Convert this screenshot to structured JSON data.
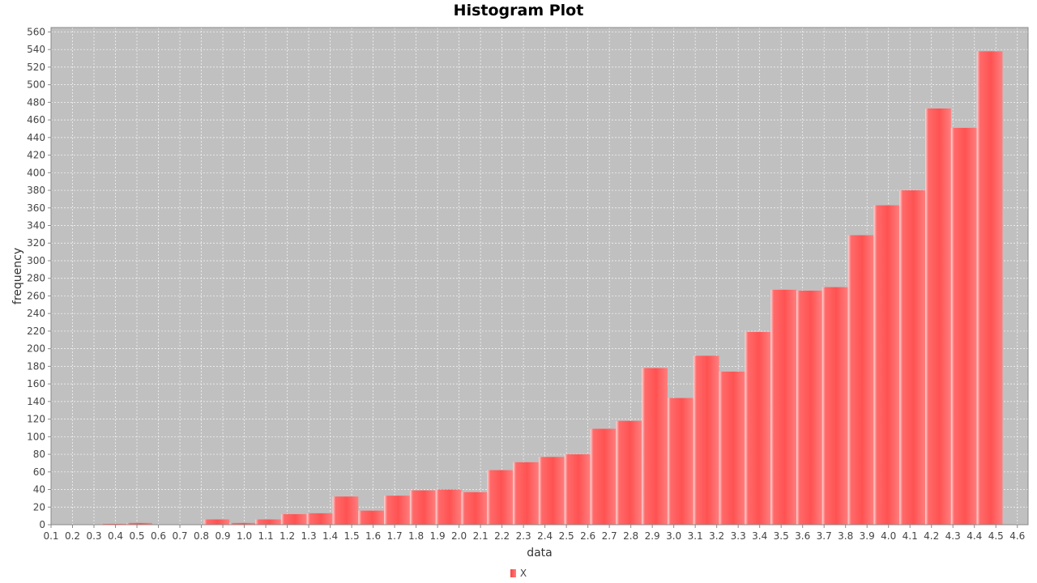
{
  "chart_data": {
    "type": "bar",
    "title": "Histogram Plot",
    "xlabel": "data",
    "ylabel": "frequency",
    "xlim": [
      0.1,
      4.65
    ],
    "ylim": [
      0,
      565
    ],
    "grid": true,
    "legend_position": "bottom-center",
    "x_ticks": [
      "0.1",
      "0.2",
      "0.3",
      "0.4",
      "0.5",
      "0.6",
      "0.7",
      "0.8",
      "0.9",
      "1.0",
      "1.1",
      "1.2",
      "1.3",
      "1.4",
      "1.5",
      "1.6",
      "1.7",
      "1.8",
      "1.9",
      "2.0",
      "2.1",
      "2.2",
      "2.3",
      "2.4",
      "2.5",
      "2.6",
      "2.7",
      "2.8",
      "2.9",
      "3.0",
      "3.1",
      "3.2",
      "3.3",
      "3.4",
      "3.5",
      "3.6",
      "3.7",
      "3.8",
      "3.9",
      "4.0",
      "4.1",
      "4.2",
      "4.3",
      "4.4",
      "4.5",
      "4.6"
    ],
    "y_ticks": [
      0,
      20,
      40,
      60,
      80,
      100,
      120,
      140,
      160,
      180,
      200,
      220,
      240,
      260,
      280,
      300,
      320,
      340,
      360,
      380,
      400,
      420,
      440,
      460,
      480,
      500,
      520,
      540,
      560
    ],
    "colors": {
      "plot_background": "#c0c0c0",
      "bar": "#ff5555",
      "gridline": "#ffffff"
    },
    "series": [
      {
        "name": "X",
        "bins": [
          {
            "start": 0.331,
            "end": 0.451,
            "value": 1
          },
          {
            "start": 0.451,
            "end": 0.571,
            "value": 2
          },
          {
            "start": 0.571,
            "end": 0.691,
            "value": 0
          },
          {
            "start": 0.691,
            "end": 0.811,
            "value": 0
          },
          {
            "start": 0.811,
            "end": 0.931,
            "value": 6
          },
          {
            "start": 0.931,
            "end": 1.051,
            "value": 2
          },
          {
            "start": 1.051,
            "end": 1.171,
            "value": 6
          },
          {
            "start": 1.171,
            "end": 1.291,
            "value": 12
          },
          {
            "start": 1.291,
            "end": 1.411,
            "value": 13
          },
          {
            "start": 1.411,
            "end": 1.531,
            "value": 32
          },
          {
            "start": 1.531,
            "end": 1.651,
            "value": 16
          },
          {
            "start": 1.651,
            "end": 1.771,
            "value": 33
          },
          {
            "start": 1.771,
            "end": 1.891,
            "value": 39
          },
          {
            "start": 1.891,
            "end": 2.011,
            "value": 40
          },
          {
            "start": 2.011,
            "end": 2.131,
            "value": 37
          },
          {
            "start": 2.131,
            "end": 2.251,
            "value": 62
          },
          {
            "start": 2.251,
            "end": 2.371,
            "value": 71
          },
          {
            "start": 2.371,
            "end": 2.491,
            "value": 77
          },
          {
            "start": 2.491,
            "end": 2.611,
            "value": 80
          },
          {
            "start": 2.611,
            "end": 2.731,
            "value": 109
          },
          {
            "start": 2.731,
            "end": 2.851,
            "value": 118
          },
          {
            "start": 2.851,
            "end": 2.971,
            "value": 178
          },
          {
            "start": 2.971,
            "end": 3.091,
            "value": 144
          },
          {
            "start": 3.091,
            "end": 3.211,
            "value": 192
          },
          {
            "start": 3.211,
            "end": 3.331,
            "value": 174
          },
          {
            "start": 3.331,
            "end": 3.451,
            "value": 219
          },
          {
            "start": 3.451,
            "end": 3.571,
            "value": 267
          },
          {
            "start": 3.571,
            "end": 3.691,
            "value": 266
          },
          {
            "start": 3.691,
            "end": 3.811,
            "value": 270
          },
          {
            "start": 3.811,
            "end": 3.931,
            "value": 329
          },
          {
            "start": 3.931,
            "end": 4.051,
            "value": 363
          },
          {
            "start": 4.051,
            "end": 4.171,
            "value": 380
          },
          {
            "start": 4.171,
            "end": 4.291,
            "value": 473
          },
          {
            "start": 4.291,
            "end": 4.411,
            "value": 451
          },
          {
            "start": 4.411,
            "end": 4.531,
            "value": 538
          }
        ]
      }
    ]
  }
}
